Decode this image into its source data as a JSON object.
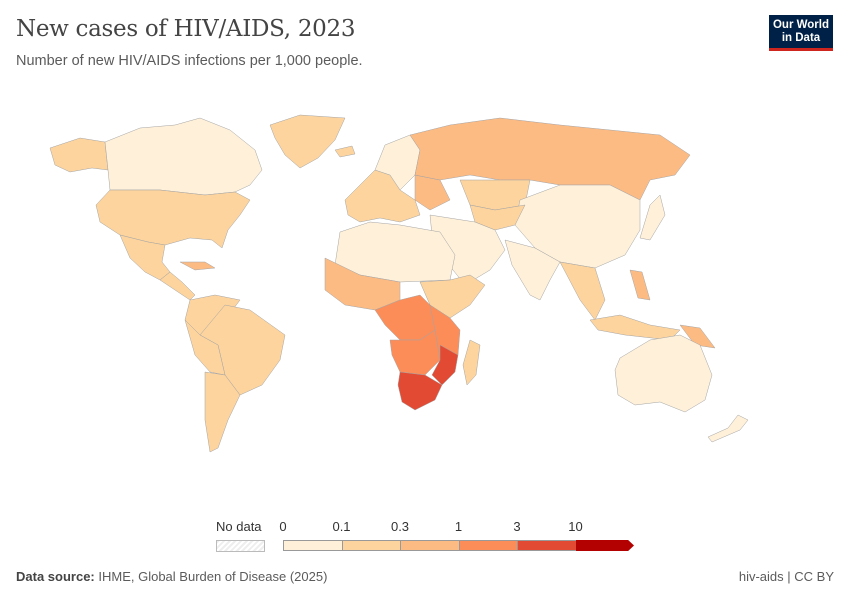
{
  "header": {
    "title": "New cases of HIV/AIDS, 2023",
    "subtitle": "Number of new HIV/AIDS infections per 1,000 people.",
    "logo": "Our World in Data"
  },
  "legend": {
    "no_data_label": "No data",
    "ticks": [
      "0",
      "0.1",
      "0.3",
      "1",
      "3",
      "10"
    ],
    "colors": [
      "#fef0d9",
      "#fdd49e",
      "#fdbb84",
      "#fc8d59",
      "#e34a33",
      "#b30000"
    ]
  },
  "footer": {
    "source_label": "Data source:",
    "source": "IHME, Global Burden of Disease (2025)",
    "right": "hiv-aids | CC BY"
  }
}
